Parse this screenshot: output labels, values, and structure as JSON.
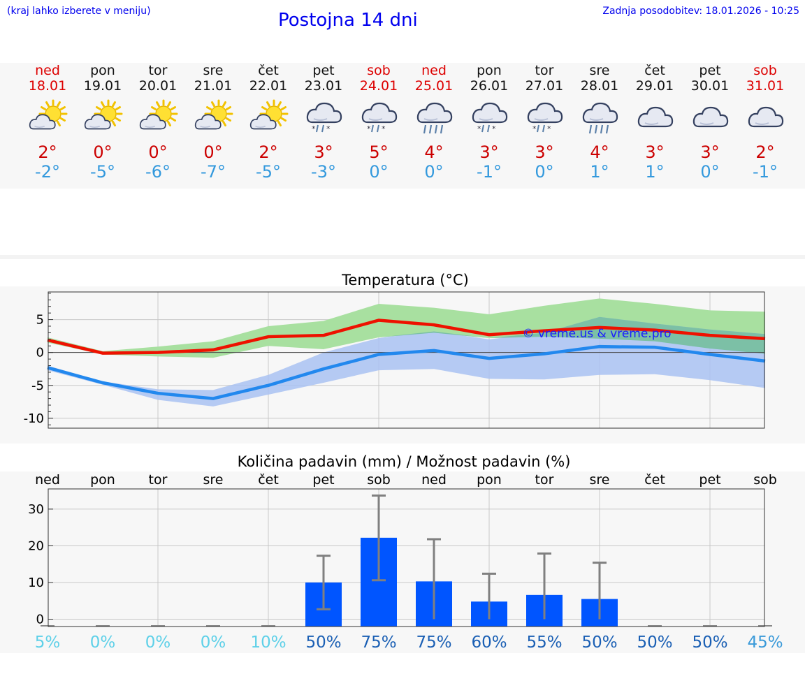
{
  "header": {
    "hint": "(kraj lahko izberete v meniju)",
    "title": "Postojna 14 dni",
    "updated": "Zadnja posodobitev: 18.01.2026 - 10:25"
  },
  "colors": {
    "max_line": "#ee1100",
    "min_line": "#2288ee",
    "max_band": "#a8e0a0",
    "min_band": "#a9c2f2",
    "overlap_band": "#7cc0a6",
    "bar": "#0055ff",
    "errorbar": "#808080",
    "weekend": "#dd0000"
  },
  "days": [
    {
      "name": "ned",
      "date": "18.01",
      "weekend": true,
      "icon": "sun-cloud-icon",
      "tmax": "2°",
      "tmin": "-2°"
    },
    {
      "name": "pon",
      "date": "19.01",
      "weekend": false,
      "icon": "sun-cloud-icon",
      "tmax": "0°",
      "tmin": "-5°"
    },
    {
      "name": "tor",
      "date": "20.01",
      "weekend": false,
      "icon": "sun-cloud-icon",
      "tmax": "0°",
      "tmin": "-6°"
    },
    {
      "name": "sre",
      "date": "21.01",
      "weekend": false,
      "icon": "sun-cloud-icon",
      "tmax": "0°",
      "tmin": "-7°"
    },
    {
      "name": "čet",
      "date": "22.01",
      "weekend": false,
      "icon": "sun-cloud-icon",
      "tmax": "2°",
      "tmin": "-5°"
    },
    {
      "name": "pet",
      "date": "23.01",
      "weekend": false,
      "icon": "cloud-sleet-icon",
      "tmax": "3°",
      "tmin": "-3°"
    },
    {
      "name": "sob",
      "date": "24.01",
      "weekend": true,
      "icon": "cloud-sleet-icon",
      "tmax": "5°",
      "tmin": "0°"
    },
    {
      "name": "ned",
      "date": "25.01",
      "weekend": true,
      "icon": "cloud-rain-icon",
      "tmax": "4°",
      "tmin": "0°"
    },
    {
      "name": "pon",
      "date": "26.01",
      "weekend": false,
      "icon": "cloud-sleet-icon",
      "tmax": "3°",
      "tmin": "-1°"
    },
    {
      "name": "tor",
      "date": "27.01",
      "weekend": false,
      "icon": "cloud-sleet-icon",
      "tmax": "3°",
      "tmin": "0°"
    },
    {
      "name": "sre",
      "date": "28.01",
      "weekend": false,
      "icon": "cloud-rain-icon",
      "tmax": "4°",
      "tmin": "1°"
    },
    {
      "name": "čet",
      "date": "29.01",
      "weekend": false,
      "icon": "cloud-icon",
      "tmax": "3°",
      "tmin": "1°"
    },
    {
      "name": "pet",
      "date": "30.01",
      "weekend": false,
      "icon": "cloud-icon",
      "tmax": "3°",
      "tmin": "0°"
    },
    {
      "name": "sob",
      "date": "31.01",
      "weekend": true,
      "icon": "cloud-icon",
      "tmax": "2°",
      "tmin": "-1°"
    }
  ],
  "chart_data": [
    {
      "type": "line",
      "title": "Temperatura (°C)",
      "xlabel": "",
      "ylabel": "",
      "ylim": [
        -11.5,
        9.2
      ],
      "yticks": [
        -10,
        -5,
        0,
        5
      ],
      "grid": true,
      "watermark": "© vreme.us & vreme.pro",
      "x": [
        "18.01",
        "19.01",
        "20.01",
        "21.01",
        "22.01",
        "23.01",
        "24.01",
        "25.01",
        "26.01",
        "27.01",
        "28.01",
        "29.01",
        "30.01",
        "31.01"
      ],
      "series": [
        {
          "name": "max",
          "values": [
            1.9,
            -0.1,
            0.0,
            0.4,
            2.4,
            2.6,
            4.9,
            4.2,
            2.7,
            3.3,
            3.8,
            3.4,
            2.6,
            2.1
          ]
        },
        {
          "name": "min",
          "values": [
            -2.3,
            -4.6,
            -6.2,
            -7.0,
            -5.0,
            -2.5,
            -0.3,
            0.3,
            -0.9,
            -0.2,
            0.9,
            0.8,
            -0.3,
            -1.3
          ]
        },
        {
          "name": "max_range_low",
          "values": [
            1.5,
            -0.3,
            -0.6,
            -0.8,
            1.0,
            0.5,
            2.3,
            3.0,
            2.2,
            2.4,
            2.1,
            1.7,
            0.6,
            -0.2
          ]
        },
        {
          "name": "max_range_high",
          "values": [
            2.3,
            0.2,
            0.9,
            1.7,
            4.0,
            4.8,
            7.4,
            6.8,
            5.8,
            7.1,
            8.2,
            7.4,
            6.4,
            6.2
          ]
        },
        {
          "name": "min_range_low",
          "values": [
            -2.7,
            -4.9,
            -7.2,
            -8.2,
            -6.4,
            -4.6,
            -2.7,
            -2.5,
            -4.0,
            -4.1,
            -3.4,
            -3.3,
            -4.2,
            -5.4
          ]
        },
        {
          "name": "min_range_high",
          "values": [
            -2.0,
            -4.4,
            -5.6,
            -5.7,
            -3.4,
            0.0,
            2.2,
            3.2,
            2.0,
            3.0,
            5.4,
            4.4,
            3.5,
            2.8
          ]
        }
      ]
    },
    {
      "type": "bar",
      "title": "Količina padavin (mm) / Možnost padavin (%)",
      "xlabel": "",
      "ylabel": "",
      "ylim": [
        -2,
        35.5
      ],
      "yticks": [
        0,
        10,
        20,
        30
      ],
      "yticklabels": [
        "0",
        "10",
        "20",
        "30"
      ],
      "grid": true,
      "categories": [
        "ned",
        "pon",
        "tor",
        "sre",
        "čet",
        "pet",
        "sob",
        "ned",
        "pon",
        "tor",
        "sre",
        "čet",
        "pet",
        "sob"
      ],
      "values": [
        0,
        0,
        0,
        0,
        0,
        10.0,
        22.2,
        10.3,
        4.8,
        6.6,
        5.5,
        0,
        0,
        0
      ],
      "err_low": [
        0,
        0,
        0,
        0,
        0,
        2.7,
        10.6,
        0,
        0,
        0,
        0,
        0,
        0,
        0
      ],
      "err_high": [
        0,
        0,
        0,
        0,
        0,
        17.3,
        33.7,
        21.8,
        12.4,
        17.9,
        15.4,
        0,
        0,
        0
      ],
      "probabilities": [
        "5%",
        "0%",
        "0%",
        "0%",
        "10%",
        "50%",
        "75%",
        "75%",
        "60%",
        "55%",
        "50%",
        "50%",
        "50%",
        "45%"
      ],
      "probability_values": [
        5,
        0,
        0,
        0,
        10,
        50,
        75,
        75,
        60,
        55,
        50,
        50,
        50,
        45
      ]
    }
  ]
}
